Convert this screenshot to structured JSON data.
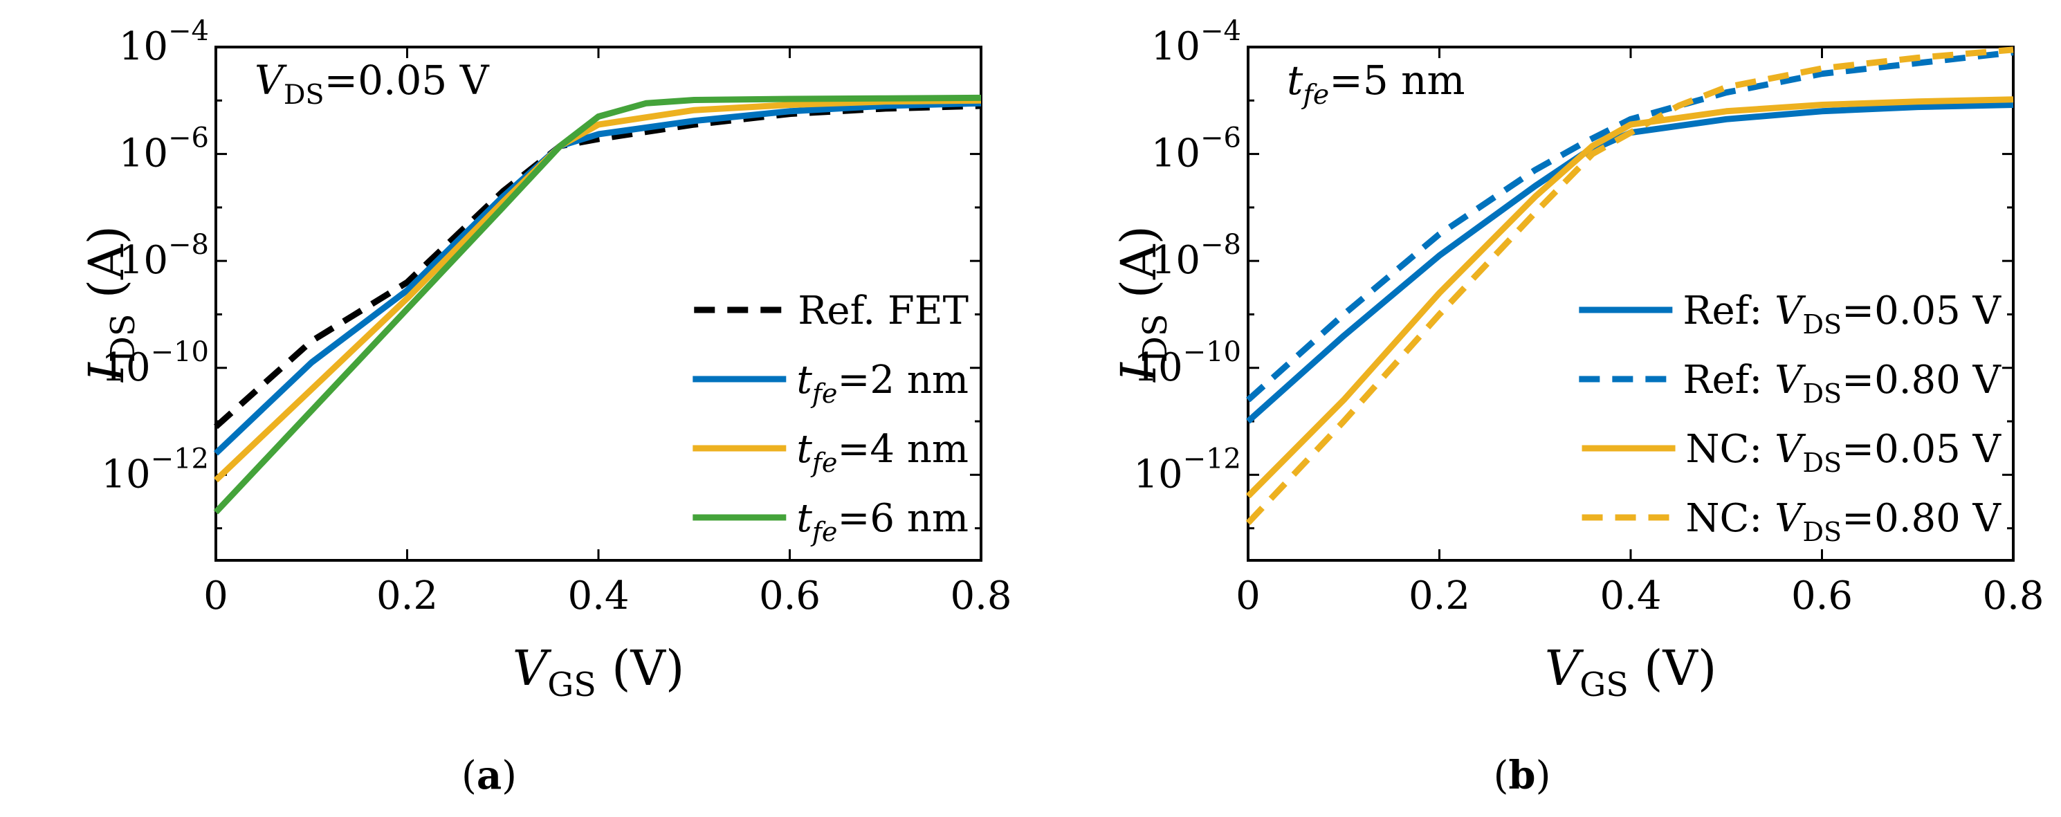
{
  "chart_data": [
    {
      "type": "line",
      "panel_label": {
        "before": "(",
        "letter": "a",
        "after": ")"
      },
      "annotation": {
        "var": "V",
        "sub": "DS",
        "rest": "=0.05 V"
      },
      "xlabel": {
        "var": "V",
        "sub": "GS",
        "rest": " (V)"
      },
      "ylabel": {
        "var": "I",
        "sub": "DS",
        "rest": " (A)"
      },
      "x_ticks": [
        "0",
        "0.2",
        "0.4",
        "0.6",
        "0.8"
      ],
      "y_ticks": [
        {
          "base": "10",
          "exp": "−12",
          "value": -12
        },
        {
          "base": "10",
          "exp": "−10",
          "value": -10
        },
        {
          "base": "10",
          "exp": "−8",
          "value": -8
        },
        {
          "base": "10",
          "exp": "−6",
          "value": -6
        },
        {
          "base": "10",
          "exp": "−4",
          "value": -4
        }
      ],
      "xlim": [
        0,
        0.8
      ],
      "ylim_log10": [
        -13.6,
        -4
      ],
      "y_scale": "log",
      "grid": false,
      "legend_position": "lower-right",
      "series": [
        {
          "name_parts": {
            "plain": "Ref. FET"
          },
          "color": "#000000",
          "dash": true,
          "x": [
            0,
            0.1,
            0.2,
            0.3,
            0.36,
            0.4,
            0.5,
            0.6,
            0.7,
            0.8
          ],
          "y_log10": [
            -11.1,
            -9.5,
            -8.4,
            -6.7,
            -5.85,
            -5.72,
            -5.45,
            -5.25,
            -5.15,
            -5.1
          ]
        },
        {
          "name_parts": {
            "var": "t",
            "sub": "fe",
            "rest": "=2 nm"
          },
          "color": "#0072BD",
          "dash": false,
          "x": [
            0,
            0.1,
            0.2,
            0.3,
            0.36,
            0.4,
            0.5,
            0.6,
            0.7,
            0.8
          ],
          "y_log10": [
            -11.6,
            -9.9,
            -8.55,
            -6.8,
            -5.85,
            -5.63,
            -5.38,
            -5.2,
            -5.1,
            -5.05
          ]
        },
        {
          "name_parts": {
            "var": "t",
            "sub": "fe",
            "rest": "=4 nm"
          },
          "color": "#EDB120",
          "dash": false,
          "x": [
            0,
            0.1,
            0.2,
            0.3,
            0.36,
            0.4,
            0.5,
            0.6,
            0.7,
            0.8
          ],
          "y_log10": [
            -12.1,
            -10.4,
            -8.7,
            -6.9,
            -5.85,
            -5.45,
            -5.18,
            -5.08,
            -5.02,
            -5.0
          ]
        },
        {
          "name_parts": {
            "var": "t",
            "sub": "fe",
            "rest": "=6 nm"
          },
          "color": "#44A33A",
          "dash": false,
          "x": [
            0,
            0.1,
            0.2,
            0.3,
            0.36,
            0.4,
            0.45,
            0.5,
            0.6,
            0.7,
            0.8
          ],
          "y_log10": [
            -12.7,
            -10.8,
            -8.9,
            -7.0,
            -5.85,
            -5.3,
            -5.05,
            -4.99,
            -4.97,
            -4.96,
            -4.95
          ]
        }
      ]
    },
    {
      "type": "line",
      "panel_label": {
        "before": "(",
        "letter": "b",
        "after": ")"
      },
      "annotation": {
        "var": "t",
        "sub": "fe",
        "rest": "=5 nm"
      },
      "xlabel": {
        "var": "V",
        "sub": "GS",
        "rest": " (V)"
      },
      "ylabel": {
        "var": "I",
        "sub": "DS",
        "rest": " (A)"
      },
      "x_ticks": [
        "0",
        "0.2",
        "0.4",
        "0.6",
        "0.8"
      ],
      "y_ticks": [
        {
          "base": "10",
          "exp": "−12",
          "value": -12
        },
        {
          "base": "10",
          "exp": "−10",
          "value": -10
        },
        {
          "base": "10",
          "exp": "−8",
          "value": -8
        },
        {
          "base": "10",
          "exp": "−6",
          "value": -6
        },
        {
          "base": "10",
          "exp": "−4",
          "value": -4
        }
      ],
      "xlim": [
        0,
        0.8
      ],
      "ylim_log10": [
        -13.6,
        -4
      ],
      "y_scale": "log",
      "grid": false,
      "legend_position": "lower-right",
      "series": [
        {
          "name_parts": {
            "prefix": "Ref: ",
            "var": "V",
            "sub": "DS",
            "rest": "=0.05 V"
          },
          "color": "#0072BD",
          "dash": false,
          "x": [
            0,
            0.1,
            0.2,
            0.3,
            0.35,
            0.4,
            0.5,
            0.6,
            0.7,
            0.8
          ],
          "y_log10": [
            -11.0,
            -9.4,
            -7.9,
            -6.6,
            -6.0,
            -5.6,
            -5.35,
            -5.2,
            -5.12,
            -5.08
          ]
        },
        {
          "name_parts": {
            "prefix": "Ref: ",
            "var": "V",
            "sub": "DS",
            "rest": "=0.80 V"
          },
          "color": "#0072BD",
          "dash": true,
          "x": [
            0,
            0.1,
            0.2,
            0.3,
            0.35,
            0.4,
            0.5,
            0.6,
            0.7,
            0.8
          ],
          "y_log10": [
            -10.6,
            -9.0,
            -7.5,
            -6.3,
            -5.8,
            -5.35,
            -4.85,
            -4.5,
            -4.3,
            -4.1
          ]
        },
        {
          "name_parts": {
            "prefix": "NC: ",
            "var": "V",
            "sub": "DS",
            "rest": "=0.05 V"
          },
          "color": "#EDB120",
          "dash": false,
          "x": [
            0,
            0.1,
            0.2,
            0.3,
            0.36,
            0.4,
            0.5,
            0.6,
            0.7,
            0.8
          ],
          "y_log10": [
            -12.4,
            -10.6,
            -8.6,
            -6.8,
            -5.85,
            -5.45,
            -5.2,
            -5.08,
            -5.02,
            -4.98
          ]
        },
        {
          "name_parts": {
            "prefix": "NC: ",
            "var": "V",
            "sub": "DS",
            "rest": "=0.80 V"
          },
          "color": "#EDB120",
          "dash": true,
          "x": [
            0,
            0.1,
            0.2,
            0.3,
            0.36,
            0.4,
            0.45,
            0.5,
            0.6,
            0.7,
            0.8
          ],
          "y_log10": [
            -12.9,
            -11.0,
            -9.0,
            -7.1,
            -6.0,
            -5.6,
            -5.1,
            -4.75,
            -4.4,
            -4.2,
            -4.05
          ]
        }
      ]
    }
  ]
}
